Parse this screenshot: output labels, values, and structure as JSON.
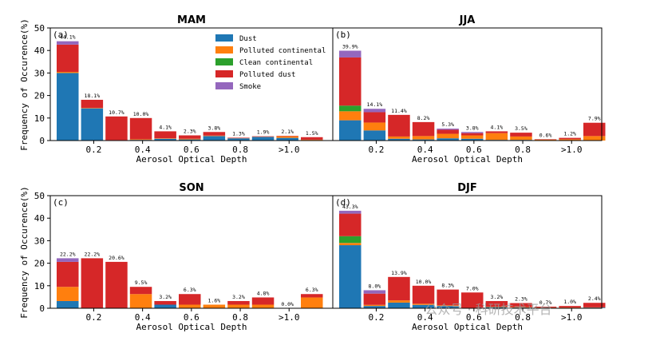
{
  "watermark": "公众号 · 科研技术平台",
  "chart_data": {
    "type": "bar",
    "stacked": true,
    "shared_ylabel": "Frequency of Occurence(%)",
    "shared_xlabel": "Aerosol Optical Depth",
    "ylim": [
      0,
      50
    ],
    "yticks": [
      "0",
      "10",
      "20",
      "30",
      "40",
      "50"
    ],
    "xtick_labels": [
      "0.2",
      "0.4",
      "0.6",
      "0.8",
      ">1.0"
    ],
    "xtick_bins": [
      1.5,
      3.5,
      5.5,
      7.5,
      9.5
    ],
    "bin_count": 11,
    "legend": {
      "placement": "top-right of panel (a)",
      "entries": [
        {
          "name": "Dust",
          "color": "#1f77b4"
        },
        {
          "name": "Polluted continental",
          "color": "#ff7f0e"
        },
        {
          "name": "Clean continental",
          "color": "#2ca02c"
        },
        {
          "name": "Polluted dust",
          "color": "#d62728"
        },
        {
          "name": "Smoke",
          "color": "#9467bd"
        }
      ]
    },
    "panels": [
      {
        "title": "MAM",
        "label": "(a)",
        "totals": [
          "44.1%",
          "18.1%",
          "10.7%",
          "10.0%",
          "4.1%",
          "2.3%",
          "3.8%",
          "1.3%",
          "1.9%",
          "2.1%",
          "1.5%"
        ],
        "series": [
          {
            "name": "Dust",
            "values": [
              30.0,
              14.3,
              0,
              0.3,
              0.8,
              0.5,
              2.0,
              1.0,
              1.6,
              1.2,
              0.2
            ]
          },
          {
            "name": "Polluted continental",
            "values": [
              0.5,
              0.2,
              0.2,
              0.3,
              0.2,
              0.3,
              0.2,
              0.1,
              0.1,
              0.7,
              0.2
            ]
          },
          {
            "name": "Clean continental",
            "values": [
              0,
              0,
              0,
              0,
              0,
              0,
              0,
              0,
              0,
              0,
              0
            ]
          },
          {
            "name": "Polluted dust",
            "values": [
              12.1,
              3.6,
              10.5,
              9.4,
              3.1,
              1.5,
              1.6,
              0.2,
              0.2,
              0.2,
              1.1
            ]
          },
          {
            "name": "Smoke",
            "values": [
              1.5,
              0,
              0,
              0,
              0,
              0,
              0,
              0,
              0,
              0,
              0
            ]
          }
        ]
      },
      {
        "title": "JJA",
        "label": "(b)",
        "totals": [
          "39.9%",
          "14.1%",
          "11.4%",
          "8.2%",
          "5.3%",
          "3.8%",
          "4.1%",
          "3.5%",
          "0.6%",
          "1.2%",
          "7.9%"
        ],
        "series": [
          {
            "name": "Dust",
            "values": [
              9.0,
              4.5,
              0.8,
              0.5,
              1.0,
              0.8,
              0.3,
              0.3,
              0,
              0,
              0
            ]
          },
          {
            "name": "Polluted continental",
            "values": [
              4.0,
              3.5,
              1.0,
              1.5,
              2.0,
              1.5,
              3.0,
              1.5,
              0.4,
              0.6,
              2.0
            ]
          },
          {
            "name": "Clean continental",
            "values": [
              2.5,
              0,
              0,
              0,
              0,
              0,
              0,
              0,
              0,
              0,
              0
            ]
          },
          {
            "name": "Polluted dust",
            "values": [
              21.4,
              4.6,
              9.6,
              6.2,
              1.8,
              1.0,
              0.8,
              1.7,
              0.2,
              0.6,
              5.9
            ]
          },
          {
            "name": "Smoke",
            "values": [
              3.0,
              1.5,
              0,
              0,
              0.5,
              0.5,
              0,
              0,
              0,
              0,
              0
            ]
          }
        ]
      },
      {
        "title": "SON",
        "label": "(c)",
        "totals": [
          "22.2%",
          "22.2%",
          "20.6%",
          "9.5%",
          "3.2%",
          "6.3%",
          "1.6%",
          "3.2%",
          "4.8%",
          "0.0%",
          "6.3%"
        ],
        "series": [
          {
            "name": "Dust",
            "values": [
              3.2,
              0,
              0,
              0,
              1.6,
              0,
              0,
              0,
              0,
              0,
              0
            ]
          },
          {
            "name": "Polluted continental",
            "values": [
              6.3,
              0,
              0,
              6.3,
              0,
              1.6,
              1.6,
              1.6,
              1.6,
              0,
              4.8
            ]
          },
          {
            "name": "Clean continental",
            "values": [
              0,
              0,
              0,
              0,
              0,
              0,
              0,
              0,
              0,
              0,
              0
            ]
          },
          {
            "name": "Polluted dust",
            "values": [
              11.1,
              22.2,
              20.6,
              3.2,
              1.6,
              4.7,
              0,
              1.6,
              3.2,
              0,
              1.5
            ]
          },
          {
            "name": "Smoke",
            "values": [
              1.6,
              0,
              0,
              0,
              0,
              0,
              0,
              0,
              0,
              0,
              0
            ]
          }
        ]
      },
      {
        "title": "DJF",
        "label": "(d)",
        "totals": [
          "43.3%",
          "8.0%",
          "13.9%",
          "10.0%",
          "8.3%",
          "7.0%",
          "3.2%",
          "2.3%",
          "0.7%",
          "1.0%",
          "2.4%"
        ],
        "series": [
          {
            "name": "Dust",
            "values": [
              28.0,
              1.0,
              2.5,
              1.5,
              1.0,
              0,
              0.5,
              0.3,
              0.2,
              0.1,
              0.3
            ]
          },
          {
            "name": "Polluted continental",
            "values": [
              1.0,
              0.5,
              1.0,
              0.5,
              0.3,
              0,
              0.2,
              0.2,
              0.1,
              0.2,
              0.1
            ]
          },
          {
            "name": "Clean continental",
            "values": [
              3.0,
              0,
              0,
              0,
              0,
              0,
              0,
              0,
              0,
              0,
              0
            ]
          },
          {
            "name": "Polluted dust",
            "values": [
              10.0,
              5.0,
              10.4,
              8.0,
              7.0,
              7.0,
              2.5,
              1.8,
              0.4,
              0.7,
              2.0
            ]
          },
          {
            "name": "Smoke",
            "values": [
              1.3,
              1.5,
              0,
              0,
              0,
              0,
              0,
              0,
              0,
              0,
              0
            ]
          }
        ]
      }
    ]
  }
}
